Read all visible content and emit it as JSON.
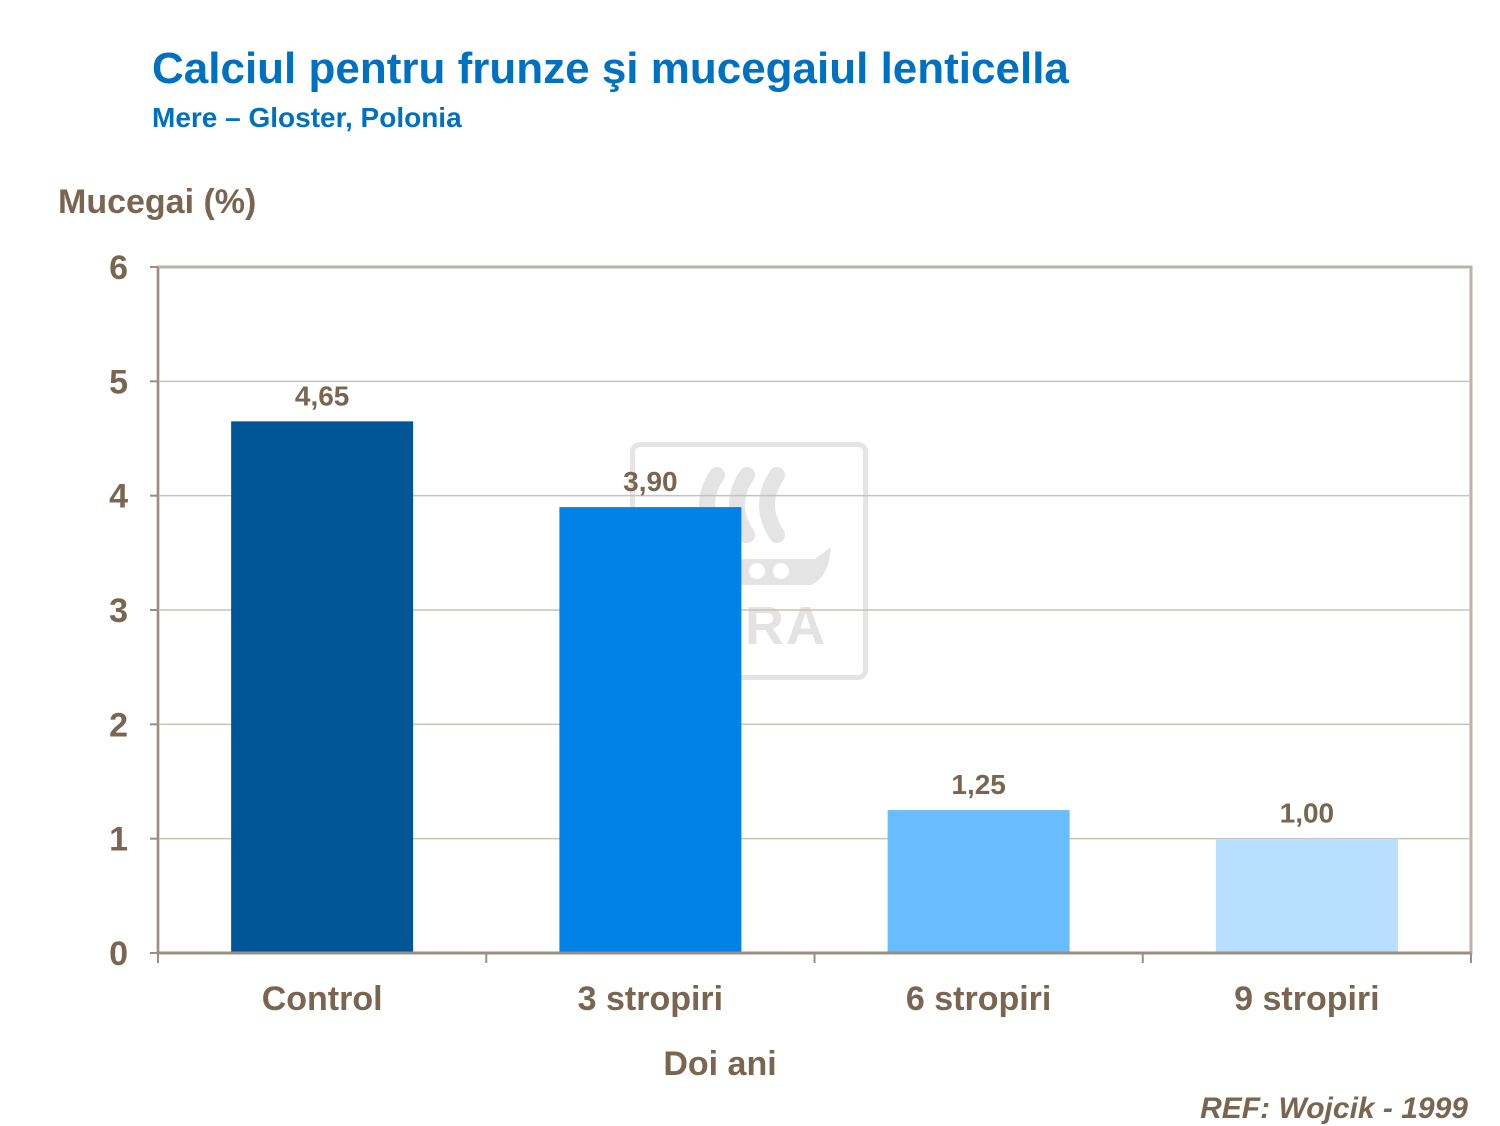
{
  "header": {
    "title": "Calciul pentru frunze şi mucegaiul lenticella",
    "subtitle": "Mere – Gloster, Polonia"
  },
  "reference": "REF: Wojcik - 1999",
  "watermark": {
    "text": "YARA"
  },
  "chart_data": {
    "type": "bar",
    "title": "Calciul pentru frunze şi mucegaiul lenticella",
    "subtitle": "Mere – Gloster, Polonia",
    "ylabel": "Mucegai (%)",
    "xlabel": "Doi ani",
    "ylim": [
      0,
      6
    ],
    "yticks": [
      "0",
      "1",
      "2",
      "3",
      "4",
      "5",
      "6"
    ],
    "grid": true,
    "legend": "none",
    "categories": [
      "Control",
      "3 stropiri",
      "6 stropiri",
      "9 stropiri"
    ],
    "values": [
      4.65,
      3.9,
      1.25,
      1.0
    ],
    "value_labels": [
      "4,65",
      "3,90",
      "1,25",
      "1,00"
    ],
    "colors": [
      "#005597",
      "#0082e6",
      "#69bdff",
      "#b8dfff"
    ]
  }
}
